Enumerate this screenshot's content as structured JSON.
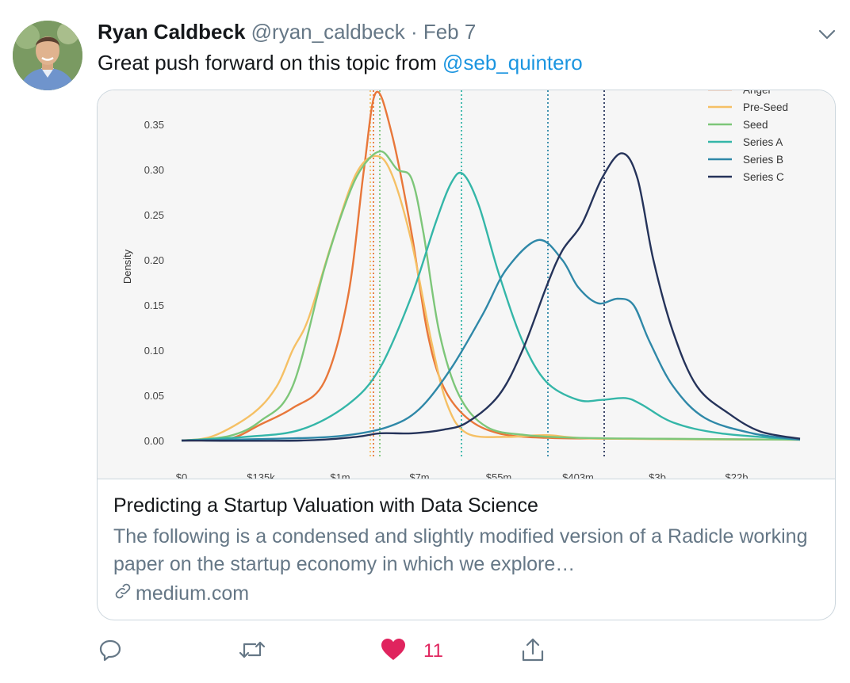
{
  "tweet": {
    "author_name": "Ryan Caldbeck",
    "author_handle": "@ryan_caldbeck",
    "separator": "·",
    "date": "Feb 7",
    "text_prefix": "Great push forward on this topic from ",
    "mention": "@seb_quintero"
  },
  "card": {
    "title": "Predicting a Startup Valuation with Data Science",
    "description": "The following is a condensed and slightly modified version of a Radicle working paper on the startup economy in which we explore…",
    "domain": "medium.com"
  },
  "actions": {
    "reply_icon": "reply-icon",
    "retweet_icon": "retweet-icon",
    "like_icon": "heart-icon",
    "share_icon": "share-icon",
    "like_count": "11"
  },
  "colors": {
    "mention": "#1b95e0",
    "like": "#e0245e",
    "meta": "#657786"
  },
  "chart_data": {
    "type": "line",
    "ylabel": "Density",
    "y_ticks": [
      "0.00",
      "0.05",
      "0.10",
      "0.15",
      "0.20",
      "0.25",
      "0.30",
      "0.35"
    ],
    "x_ticks": [
      "$0",
      "$135k",
      "$1m",
      "$7m",
      "$55m",
      "$403m",
      "$3b",
      "$22b"
    ],
    "ylim": [
      0,
      0.385
    ],
    "xlim": [
      0,
      7.8
    ],
    "legend_placement": "top-right",
    "series": [
      {
        "name": "Angel",
        "color": "#e8773a",
        "median": 2.42,
        "points": [
          [
            0,
            0
          ],
          [
            0.6,
            0.002
          ],
          [
            1.0,
            0.018
          ],
          [
            1.4,
            0.036
          ],
          [
            1.8,
            0.065
          ],
          [
            2.1,
            0.16
          ],
          [
            2.3,
            0.3
          ],
          [
            2.45,
            0.385
          ],
          [
            2.65,
            0.34
          ],
          [
            2.9,
            0.23
          ],
          [
            3.1,
            0.12
          ],
          [
            3.3,
            0.06
          ],
          [
            3.6,
            0.025
          ],
          [
            4.0,
            0.008
          ],
          [
            4.6,
            0.003
          ],
          [
            5.6,
            0.002
          ],
          [
            7.8,
            0.001
          ]
        ]
      },
      {
        "name": "Pre-Seed",
        "color": "#f5c065",
        "median": 2.38,
        "points": [
          [
            0,
            0
          ],
          [
            0.4,
            0.005
          ],
          [
            0.9,
            0.03
          ],
          [
            1.2,
            0.06
          ],
          [
            1.4,
            0.1
          ],
          [
            1.6,
            0.135
          ],
          [
            1.9,
            0.22
          ],
          [
            2.2,
            0.295
          ],
          [
            2.45,
            0.315
          ],
          [
            2.65,
            0.295
          ],
          [
            2.9,
            0.22
          ],
          [
            3.15,
            0.11
          ],
          [
            3.35,
            0.04
          ],
          [
            3.6,
            0.008
          ],
          [
            4.1,
            0.004
          ],
          [
            4.6,
            0.006
          ],
          [
            5.3,
            0.002
          ],
          [
            7.8,
            0.001
          ]
        ]
      },
      {
        "name": "Seed",
        "color": "#7dc679",
        "median": 2.5,
        "points": [
          [
            0,
            0
          ],
          [
            0.6,
            0.005
          ],
          [
            1.0,
            0.022
          ],
          [
            1.4,
            0.06
          ],
          [
            1.8,
            0.19
          ],
          [
            2.1,
            0.27
          ],
          [
            2.3,
            0.305
          ],
          [
            2.52,
            0.32
          ],
          [
            2.72,
            0.3
          ],
          [
            2.9,
            0.29
          ],
          [
            3.05,
            0.23
          ],
          [
            3.25,
            0.12
          ],
          [
            3.5,
            0.05
          ],
          [
            3.85,
            0.015
          ],
          [
            4.35,
            0.006
          ],
          [
            5.0,
            0.003
          ],
          [
            6.0,
            0.002
          ],
          [
            7.8,
            0.001
          ]
        ]
      },
      {
        "name": "Series A",
        "color": "#34b6a8",
        "median": 3.53,
        "points": [
          [
            0,
            0
          ],
          [
            0.8,
            0.004
          ],
          [
            1.5,
            0.012
          ],
          [
            2.1,
            0.04
          ],
          [
            2.5,
            0.08
          ],
          [
            2.9,
            0.16
          ],
          [
            3.2,
            0.24
          ],
          [
            3.4,
            0.285
          ],
          [
            3.55,
            0.295
          ],
          [
            3.75,
            0.26
          ],
          [
            4.0,
            0.185
          ],
          [
            4.3,
            0.11
          ],
          [
            4.6,
            0.065
          ],
          [
            5.0,
            0.045
          ],
          [
            5.3,
            0.045
          ],
          [
            5.6,
            0.047
          ],
          [
            5.8,
            0.04
          ],
          [
            6.2,
            0.02
          ],
          [
            6.8,
            0.008
          ],
          [
            7.8,
            0.001
          ]
        ]
      },
      {
        "name": "Series B",
        "color": "#2f88a8",
        "median": 4.62,
        "points": [
          [
            0,
            0
          ],
          [
            1.2,
            0.002
          ],
          [
            2.0,
            0.005
          ],
          [
            2.6,
            0.015
          ],
          [
            3.0,
            0.035
          ],
          [
            3.4,
            0.08
          ],
          [
            3.8,
            0.14
          ],
          [
            4.1,
            0.19
          ],
          [
            4.5,
            0.222
          ],
          [
            4.8,
            0.2
          ],
          [
            5.0,
            0.17
          ],
          [
            5.25,
            0.152
          ],
          [
            5.5,
            0.157
          ],
          [
            5.7,
            0.15
          ],
          [
            5.9,
            0.11
          ],
          [
            6.2,
            0.06
          ],
          [
            6.6,
            0.025
          ],
          [
            7.2,
            0.008
          ],
          [
            7.8,
            0.001
          ]
        ]
      },
      {
        "name": "Series C",
        "color": "#25335a",
        "median": 5.33,
        "points": [
          [
            0,
            0
          ],
          [
            1.5,
            0.0
          ],
          [
            2.2,
            0.004
          ],
          [
            2.5,
            0.008
          ],
          [
            2.9,
            0.008
          ],
          [
            3.3,
            0.012
          ],
          [
            3.6,
            0.02
          ],
          [
            4.0,
            0.05
          ],
          [
            4.3,
            0.1
          ],
          [
            4.6,
            0.17
          ],
          [
            4.8,
            0.21
          ],
          [
            5.05,
            0.24
          ],
          [
            5.3,
            0.29
          ],
          [
            5.55,
            0.318
          ],
          [
            5.75,
            0.29
          ],
          [
            5.95,
            0.2
          ],
          [
            6.2,
            0.12
          ],
          [
            6.5,
            0.06
          ],
          [
            6.9,
            0.03
          ],
          [
            7.3,
            0.01
          ],
          [
            7.8,
            0.002
          ]
        ]
      }
    ]
  }
}
